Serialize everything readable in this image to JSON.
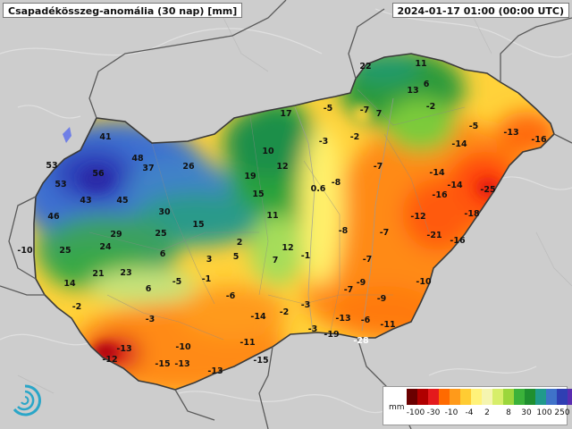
{
  "header": {
    "title": "Csapadékösszeg-anomália (30 nap) [mm]",
    "datetime": "2024-01-17 01:00 (00:00 UTC)"
  },
  "legend": {
    "unit": "mm",
    "colors": [
      "#6a0000",
      "#b00000",
      "#e41a1c",
      "#ff6a00",
      "#ff9a1a",
      "#ffcc33",
      "#fff27a",
      "#f5f5b0",
      "#d7ee6a",
      "#9bd63c",
      "#3bb23a",
      "#1f8f2f",
      "#209a8c",
      "#3f73c9",
      "#2f3fb3",
      "#5a2db0",
      "#8a2fc0",
      "#b04ad0"
    ],
    "ticks": [
      "-100",
      "-30",
      "-10",
      "-4",
      "2",
      "8",
      "30",
      "100",
      "250"
    ]
  },
  "stations": [
    {
      "v": "22",
      "c": "n"
    },
    {
      "v": "11",
      "c": "n"
    },
    {
      "v": "6",
      "c": "n"
    },
    {
      "v": "13",
      "c": "n"
    },
    {
      "v": "-2",
      "c": "n"
    },
    {
      "v": "17",
      "c": "n"
    },
    {
      "v": "-5",
      "c": "n"
    },
    {
      "v": "-7",
      "c": "n"
    },
    {
      "v": "7",
      "c": "n"
    },
    {
      "v": "-5",
      "c": "n"
    },
    {
      "v": "-13",
      "c": "n"
    },
    {
      "v": "-16",
      "c": "n"
    },
    {
      "v": "-3",
      "c": "n"
    },
    {
      "v": "-2",
      "c": "n"
    },
    {
      "v": "-14",
      "c": "n"
    },
    {
      "v": "41",
      "c": "n"
    },
    {
      "v": "10",
      "c": "n"
    },
    {
      "v": "48",
      "c": "n"
    },
    {
      "v": "37",
      "c": "n"
    },
    {
      "v": "26",
      "c": "n"
    },
    {
      "v": "12",
      "c": "n"
    },
    {
      "v": "-7",
      "c": "n"
    },
    {
      "v": "53",
      "c": "n"
    },
    {
      "v": "56",
      "c": "n"
    },
    {
      "v": "19",
      "c": "n"
    },
    {
      "v": "-14",
      "c": "n"
    },
    {
      "v": "53",
      "c": "n"
    },
    {
      "v": "-8",
      "c": "n"
    },
    {
      "v": "-14",
      "c": "n"
    },
    {
      "v": "-25",
      "c": "n"
    },
    {
      "v": "43",
      "c": "n"
    },
    {
      "v": "45",
      "c": "n"
    },
    {
      "v": "15",
      "c": "n"
    },
    {
      "v": "0.6",
      "c": "n"
    },
    {
      "v": "-16",
      "c": "n"
    },
    {
      "v": "30",
      "c": "n"
    },
    {
      "v": "11",
      "c": "n"
    },
    {
      "v": "-18",
      "c": "n"
    },
    {
      "v": "46",
      "c": "n"
    },
    {
      "v": "-12",
      "c": "n"
    },
    {
      "v": "15",
      "c": "n"
    },
    {
      "v": "29",
      "c": "n"
    },
    {
      "v": "25",
      "c": "n"
    },
    {
      "v": "-8",
      "c": "n"
    },
    {
      "v": "-7",
      "c": "n"
    },
    {
      "v": "-21",
      "c": "n"
    },
    {
      "v": "-16",
      "c": "n"
    },
    {
      "v": "2",
      "c": "n"
    },
    {
      "v": "24",
      "c": "n"
    },
    {
      "v": "-10",
      "c": "n"
    },
    {
      "v": "25",
      "c": "n"
    },
    {
      "v": "6",
      "c": "n"
    },
    {
      "v": "12",
      "c": "n"
    },
    {
      "v": "3",
      "c": "n"
    },
    {
      "v": "5",
      "c": "n"
    },
    {
      "v": "-1",
      "c": "n"
    },
    {
      "v": "7",
      "c": "n"
    },
    {
      "v": "-7",
      "c": "n"
    },
    {
      "v": "21",
      "c": "n"
    },
    {
      "v": "23",
      "c": "n"
    },
    {
      "v": "14",
      "c": "n"
    },
    {
      "v": "-5",
      "c": "n"
    },
    {
      "v": "-1",
      "c": "n"
    },
    {
      "v": "-9",
      "c": "n"
    },
    {
      "v": "-10",
      "c": "n"
    },
    {
      "v": "6",
      "c": "n"
    },
    {
      "v": "-6",
      "c": "n"
    },
    {
      "v": "-7",
      "c": "n"
    },
    {
      "v": "-9",
      "c": "n"
    },
    {
      "v": "-2",
      "c": "n"
    },
    {
      "v": "-3",
      "c": "n"
    },
    {
      "v": "-14",
      "c": "n"
    },
    {
      "v": "-2",
      "c": "n"
    },
    {
      "v": "-13",
      "c": "n"
    },
    {
      "v": "-6",
      "c": "n"
    },
    {
      "v": "-11",
      "c": "n"
    },
    {
      "v": "-3",
      "c": "n"
    },
    {
      "v": "-3",
      "c": "n"
    },
    {
      "v": "-19",
      "c": "n"
    },
    {
      "v": "-13",
      "c": "n"
    },
    {
      "v": "-10",
      "c": "n"
    },
    {
      "v": "-11",
      "c": "n"
    },
    {
      "v": "-28",
      "c": "w"
    },
    {
      "v": "-12",
      "c": "n"
    },
    {
      "v": "-15",
      "c": "n"
    },
    {
      "v": "-13",
      "c": "n"
    },
    {
      "v": "-13",
      "c": "n"
    },
    {
      "v": "-15",
      "c": "n"
    }
  ]
}
